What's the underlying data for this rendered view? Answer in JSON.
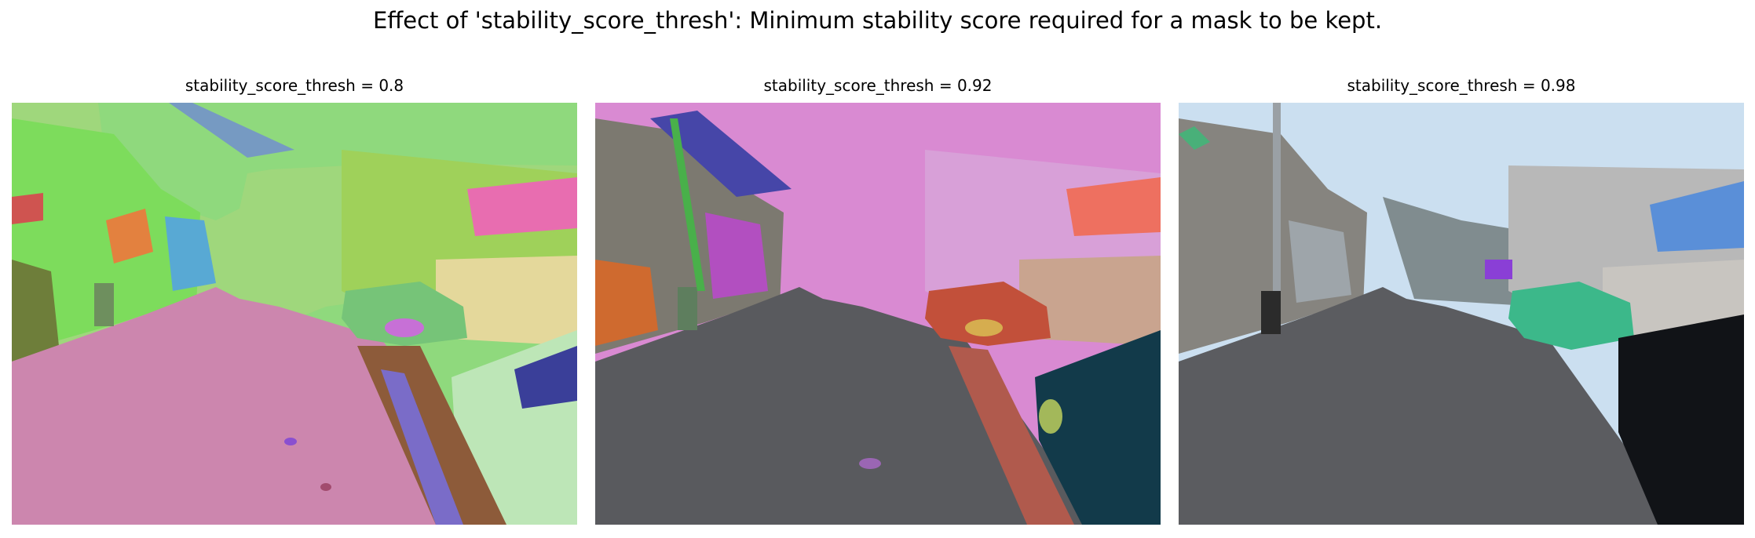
{
  "figure": {
    "suptitle": "Effect of 'stability_score_thresh': Minimum stability score required for a mask to be kept."
  },
  "panels": [
    {
      "title": "stability_score_thresh = 0.8"
    },
    {
      "title": "stability_score_thresh = 0.92"
    },
    {
      "title": "stability_score_thresh = 0.98"
    }
  ],
  "colors": {
    "sky": "#cbdff0",
    "road": "#5b5c60",
    "mask_green_sky": "#8fd97d",
    "mask_pink_sky": "#d98ad2",
    "mask_road_pink": "#c98aa7",
    "mask_car_teal": "#3cb88a",
    "mask_car_red": "#c2503a",
    "mask_building_lime": "#9fd15a",
    "mask_billboard_orange": "#e0784f",
    "mask_billboard_blue": "#5a8fd8"
  }
}
